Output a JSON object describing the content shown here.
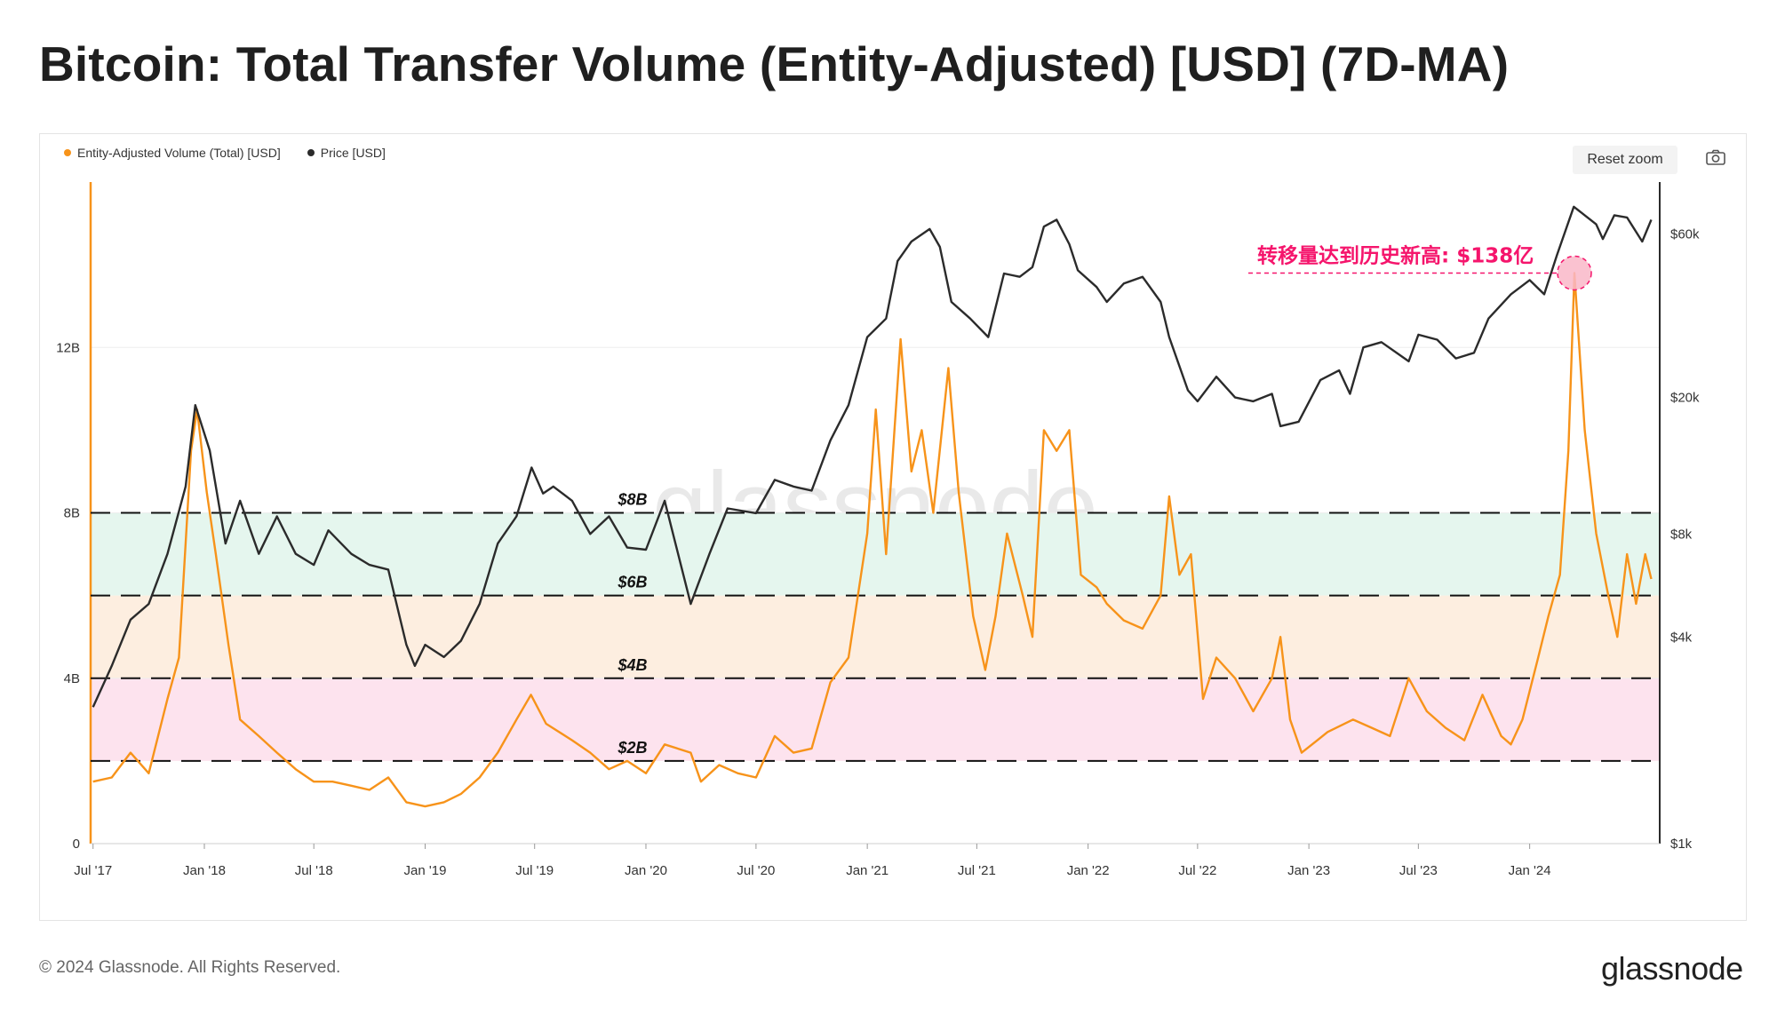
{
  "title": "Bitcoin: Total Transfer Volume (Entity-Adjusted) [USD] (7D-MA)",
  "legend": [
    {
      "label": "Entity-Adjusted Volume (Total) [USD]",
      "color": "#f7931a"
    },
    {
      "label": "Price [USD]",
      "color": "#2b2b2b"
    }
  ],
  "toolbar": {
    "reset_zoom": "Reset zoom",
    "camera_icon": "camera-icon"
  },
  "footer": {
    "copyright": "© 2024 Glassnode. All Rights Reserved.",
    "logo": "glassnode"
  },
  "watermark": "glassnode",
  "chart_data": {
    "type": "line",
    "title": "Bitcoin: Total Transfer Volume (Entity-Adjusted) [USD] (7D-MA)",
    "x_tick_labels": [
      "Jul '17",
      "Jan '18",
      "Jul '18",
      "Jan '19",
      "Jul '19",
      "Jan '20",
      "Jul '20",
      "Jan '21",
      "Jul '21",
      "Jan '22",
      "Jul '22",
      "Jan '23",
      "Jul '23",
      "Jan '24"
    ],
    "y_left_ticks": [
      "0",
      "4B",
      "8B",
      "12B"
    ],
    "y_left_lim": [
      0,
      16000000000
    ],
    "y_right_ticks": [
      "$1k",
      "$4k",
      "$8k",
      "$20k",
      "$60k"
    ],
    "y_right_scale": "log",
    "level_lines": [
      {
        "label": "$8B",
        "value": 8000000000
      },
      {
        "label": "$6B",
        "value": 6000000000
      },
      {
        "label": "$4B",
        "value": 4000000000
      },
      {
        "label": "$2B",
        "value": 2000000000
      }
    ],
    "bands": [
      {
        "from": 6000000000,
        "to": 8000000000,
        "color": "#e5f6ee"
      },
      {
        "from": 4000000000,
        "to": 6000000000,
        "color": "#fdeee0"
      },
      {
        "from": 2000000000,
        "to": 4000000000,
        "color": "#fde3ee"
      }
    ],
    "annotation": {
      "text": "转移量达到历史新高: $138亿",
      "date": "2024-03-15",
      "value": 13800000000
    },
    "series": [
      {
        "name": "Entity-Adjusted Volume (Total) [USD]",
        "color": "#f7931a",
        "axis": "left",
        "unit": "B USD",
        "points": [
          [
            "2017-07-01",
            1.5
          ],
          [
            "2017-08-01",
            1.6
          ],
          [
            "2017-09-01",
            2.2
          ],
          [
            "2017-10-01",
            1.7
          ],
          [
            "2017-11-01",
            3.5
          ],
          [
            "2017-11-20",
            4.5
          ],
          [
            "2017-12-10",
            9.5
          ],
          [
            "2017-12-20",
            10.5
          ],
          [
            "2018-01-05",
            8.5
          ],
          [
            "2018-01-20",
            7.0
          ],
          [
            "2018-02-10",
            4.8
          ],
          [
            "2018-03-01",
            3.0
          ],
          [
            "2018-04-01",
            2.6
          ],
          [
            "2018-05-01",
            2.2
          ],
          [
            "2018-06-01",
            1.8
          ],
          [
            "2018-07-01",
            1.5
          ],
          [
            "2018-08-01",
            1.5
          ],
          [
            "2018-09-01",
            1.4
          ],
          [
            "2018-10-01",
            1.3
          ],
          [
            "2018-11-01",
            1.6
          ],
          [
            "2018-12-01",
            1.0
          ],
          [
            "2019-01-01",
            0.9
          ],
          [
            "2019-02-01",
            1.0
          ],
          [
            "2019-03-01",
            1.2
          ],
          [
            "2019-04-01",
            1.6
          ],
          [
            "2019-05-01",
            2.2
          ],
          [
            "2019-06-01",
            3.0
          ],
          [
            "2019-06-25",
            3.6
          ],
          [
            "2019-07-20",
            2.9
          ],
          [
            "2019-09-01",
            2.5
          ],
          [
            "2019-10-01",
            2.2
          ],
          [
            "2019-11-01",
            1.8
          ],
          [
            "2019-12-01",
            2.0
          ],
          [
            "2020-01-01",
            1.7
          ],
          [
            "2020-02-01",
            2.4
          ],
          [
            "2020-03-15",
            2.2
          ],
          [
            "2020-04-01",
            1.5
          ],
          [
            "2020-05-01",
            1.9
          ],
          [
            "2020-06-01",
            1.7
          ],
          [
            "2020-07-01",
            1.6
          ],
          [
            "2020-08-01",
            2.6
          ],
          [
            "2020-09-01",
            2.2
          ],
          [
            "2020-10-01",
            2.3
          ],
          [
            "2020-11-01",
            3.9
          ],
          [
            "2020-12-01",
            4.5
          ],
          [
            "2021-01-01",
            7.5
          ],
          [
            "2021-01-15",
            10.5
          ],
          [
            "2021-02-01",
            7.0
          ],
          [
            "2021-02-25",
            12.2
          ],
          [
            "2021-03-15",
            9.0
          ],
          [
            "2021-04-01",
            10.0
          ],
          [
            "2021-04-20",
            8.0
          ],
          [
            "2021-05-15",
            11.5
          ],
          [
            "2021-06-01",
            8.5
          ],
          [
            "2021-06-25",
            5.5
          ],
          [
            "2021-07-15",
            4.2
          ],
          [
            "2021-08-01",
            5.5
          ],
          [
            "2021-08-20",
            7.5
          ],
          [
            "2021-09-15",
            6.0
          ],
          [
            "2021-10-01",
            5.0
          ],
          [
            "2021-10-20",
            10.0
          ],
          [
            "2021-11-10",
            9.5
          ],
          [
            "2021-12-01",
            10.0
          ],
          [
            "2021-12-20",
            6.5
          ],
          [
            "2022-01-15",
            6.2
          ],
          [
            "2022-02-01",
            5.8
          ],
          [
            "2022-03-01",
            5.4
          ],
          [
            "2022-04-01",
            5.2
          ],
          [
            "2022-05-01",
            6.0
          ],
          [
            "2022-05-15",
            8.4
          ],
          [
            "2022-06-01",
            6.5
          ],
          [
            "2022-06-20",
            7.0
          ],
          [
            "2022-07-10",
            3.5
          ],
          [
            "2022-08-01",
            4.5
          ],
          [
            "2022-09-01",
            4.0
          ],
          [
            "2022-10-01",
            3.2
          ],
          [
            "2022-11-01",
            4.0
          ],
          [
            "2022-11-15",
            5.0
          ],
          [
            "2022-12-01",
            3.0
          ],
          [
            "2022-12-20",
            2.2
          ],
          [
            "2023-01-15",
            2.5
          ],
          [
            "2023-02-01",
            2.7
          ],
          [
            "2023-03-15",
            3.0
          ],
          [
            "2023-04-15",
            2.8
          ],
          [
            "2023-05-15",
            2.6
          ],
          [
            "2023-06-15",
            4.0
          ],
          [
            "2023-07-15",
            3.2
          ],
          [
            "2023-08-15",
            2.8
          ],
          [
            "2023-09-15",
            2.5
          ],
          [
            "2023-10-15",
            3.6
          ],
          [
            "2023-11-15",
            2.6
          ],
          [
            "2023-12-01",
            2.4
          ],
          [
            "2023-12-20",
            3.0
          ],
          [
            "2024-01-15",
            4.5
          ],
          [
            "2024-02-01",
            5.5
          ],
          [
            "2024-02-20",
            6.5
          ],
          [
            "2024-03-05",
            9.5
          ],
          [
            "2024-03-15",
            13.8
          ],
          [
            "2024-04-01",
            10.0
          ],
          [
            "2024-04-20",
            7.5
          ],
          [
            "2024-05-10",
            6.0
          ],
          [
            "2024-05-25",
            5.0
          ],
          [
            "2024-06-10",
            7.0
          ],
          [
            "2024-06-25",
            5.8
          ],
          [
            "2024-07-10",
            7.0
          ],
          [
            "2024-07-20",
            6.4
          ]
        ]
      },
      {
        "name": "Price [USD]",
        "color": "#2b2b2b",
        "axis": "right",
        "unit": "USD",
        "points": [
          [
            "2017-07-01",
            2500
          ],
          [
            "2017-08-01",
            3300
          ],
          [
            "2017-09-01",
            4500
          ],
          [
            "2017-10-01",
            5000
          ],
          [
            "2017-11-01",
            7000
          ],
          [
            "2017-12-01",
            11000
          ],
          [
            "2017-12-17",
            19000
          ],
          [
            "2018-01-10",
            14000
          ],
          [
            "2018-02-05",
            7500
          ],
          [
            "2018-03-01",
            10000
          ],
          [
            "2018-04-01",
            7000
          ],
          [
            "2018-05-01",
            9000
          ],
          [
            "2018-06-01",
            7000
          ],
          [
            "2018-07-01",
            6500
          ],
          [
            "2018-07-25",
            8200
          ],
          [
            "2018-09-01",
            7000
          ],
          [
            "2018-10-01",
            6500
          ],
          [
            "2018-11-01",
            6300
          ],
          [
            "2018-12-01",
            3800
          ],
          [
            "2018-12-15",
            3300
          ],
          [
            "2019-01-01",
            3800
          ],
          [
            "2019-02-01",
            3500
          ],
          [
            "2019-03-01",
            3900
          ],
          [
            "2019-04-01",
            5000
          ],
          [
            "2019-05-01",
            7500
          ],
          [
            "2019-06-01",
            9000
          ],
          [
            "2019-06-26",
            12500
          ],
          [
            "2019-07-15",
            10500
          ],
          [
            "2019-08-01",
            11000
          ],
          [
            "2019-09-01",
            10000
          ],
          [
            "2019-10-01",
            8000
          ],
          [
            "2019-11-01",
            9000
          ],
          [
            "2019-12-01",
            7300
          ],
          [
            "2020-01-01",
            7200
          ],
          [
            "2020-02-01",
            10000
          ],
          [
            "2020-03-15",
            5000
          ],
          [
            "2020-04-15",
            7000
          ],
          [
            "2020-05-15",
            9500
          ],
          [
            "2020-07-01",
            9200
          ],
          [
            "2020-08-01",
            11500
          ],
          [
            "2020-09-01",
            11000
          ],
          [
            "2020-10-01",
            10700
          ],
          [
            "2020-11-01",
            15000
          ],
          [
            "2020-12-01",
            19000
          ],
          [
            "2021-01-01",
            30000
          ],
          [
            "2021-02-01",
            34000
          ],
          [
            "2021-02-20",
            50000
          ],
          [
            "2021-03-15",
            57000
          ],
          [
            "2021-04-14",
            62000
          ],
          [
            "2021-05-01",
            55000
          ],
          [
            "2021-05-20",
            38000
          ],
          [
            "2021-06-20",
            34000
          ],
          [
            "2021-07-20",
            30000
          ],
          [
            "2021-08-15",
            46000
          ],
          [
            "2021-09-10",
            45000
          ],
          [
            "2021-10-01",
            48000
          ],
          [
            "2021-10-20",
            63000
          ],
          [
            "2021-11-10",
            66000
          ],
          [
            "2021-12-01",
            56000
          ],
          [
            "2021-12-15",
            47000
          ],
          [
            "2022-01-15",
            42000
          ],
          [
            "2022-02-01",
            38000
          ],
          [
            "2022-03-01",
            43000
          ],
          [
            "2022-04-01",
            45000
          ],
          [
            "2022-05-01",
            38000
          ],
          [
            "2022-05-15",
            30000
          ],
          [
            "2022-06-15",
            21000
          ],
          [
            "2022-07-01",
            19500
          ],
          [
            "2022-08-01",
            23000
          ],
          [
            "2022-09-01",
            20000
          ],
          [
            "2022-10-01",
            19500
          ],
          [
            "2022-11-01",
            20500
          ],
          [
            "2022-11-15",
            16500
          ],
          [
            "2022-12-15",
            17000
          ],
          [
            "2023-01-20",
            22500
          ],
          [
            "2023-02-20",
            24000
          ],
          [
            "2023-03-10",
            20500
          ],
          [
            "2023-04-01",
            28000
          ],
          [
            "2023-05-01",
            29000
          ],
          [
            "2023-06-15",
            25500
          ],
          [
            "2023-07-01",
            30500
          ],
          [
            "2023-08-01",
            29500
          ],
          [
            "2023-09-01",
            26000
          ],
          [
            "2023-10-01",
            27000
          ],
          [
            "2023-10-25",
            34000
          ],
          [
            "2023-12-01",
            40000
          ],
          [
            "2024-01-01",
            44000
          ],
          [
            "2024-01-25",
            40000
          ],
          [
            "2024-02-15",
            52000
          ],
          [
            "2024-03-14",
            72000
          ],
          [
            "2024-04-01",
            68000
          ],
          [
            "2024-04-20",
            64000
          ],
          [
            "2024-05-01",
            58000
          ],
          [
            "2024-05-20",
            68000
          ],
          [
            "2024-06-10",
            67000
          ],
          [
            "2024-07-05",
            57000
          ],
          [
            "2024-07-20",
            66000
          ]
        ]
      }
    ]
  }
}
